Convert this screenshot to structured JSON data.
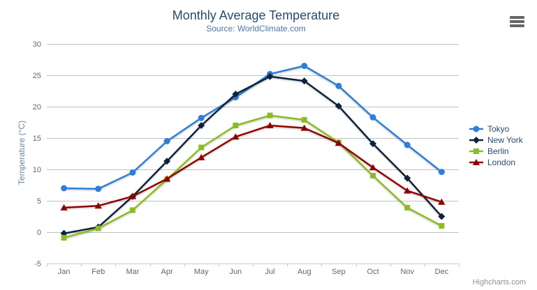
{
  "header": {
    "title": "Monthly Average Temperature",
    "subtitle": "Source: WorldClimate.com"
  },
  "credits": "Highcharts.com",
  "icons": {
    "context_menu": "hamburger-menu-icon"
  },
  "colors": {
    "title": "#274b6d",
    "subtitle": "#4d759e",
    "axis_label": "#666666",
    "axis_title": "#6D869F",
    "gridline": "#C0C0C0",
    "axis_line": "#C0D0E0",
    "credits": "#909090",
    "menu_icon": "#666666"
  },
  "chart_data": {
    "type": "line",
    "title": "Monthly Average Temperature",
    "subtitle": "Source: WorldClimate.com",
    "categories": [
      "Jan",
      "Feb",
      "Mar",
      "Apr",
      "May",
      "Jun",
      "Jul",
      "Aug",
      "Sep",
      "Oct",
      "Nov",
      "Dec"
    ],
    "series": [
      {
        "name": "Tokyo",
        "color": "#2f7ed8",
        "marker": "circle",
        "values": [
          7.0,
          6.9,
          9.5,
          14.5,
          18.2,
          21.5,
          25.2,
          26.5,
          23.3,
          18.3,
          13.9,
          9.6
        ]
      },
      {
        "name": "New York",
        "color": "#0d233a",
        "marker": "diamond",
        "values": [
          -0.2,
          0.8,
          5.7,
          11.3,
          17.0,
          22.0,
          24.8,
          24.1,
          20.1,
          14.1,
          8.6,
          2.5
        ]
      },
      {
        "name": "Berlin",
        "color": "#8bbc21",
        "marker": "square",
        "values": [
          -0.9,
          0.6,
          3.5,
          8.4,
          13.5,
          17.0,
          18.6,
          17.9,
          14.3,
          9.0,
          3.9,
          1.0
        ]
      },
      {
        "name": "London",
        "color": "#910000",
        "marker": "triangle",
        "values": [
          3.9,
          4.2,
          5.7,
          8.5,
          11.9,
          15.2,
          17.0,
          16.6,
          14.2,
          10.3,
          6.6,
          4.8
        ]
      }
    ],
    "xlabel": "",
    "ylabel": "Temperature (°C)",
    "ylim": [
      -5,
      30
    ],
    "yticks": [
      -5,
      0,
      5,
      10,
      15,
      20,
      25,
      30
    ],
    "grid": true,
    "legend_position": "right"
  }
}
